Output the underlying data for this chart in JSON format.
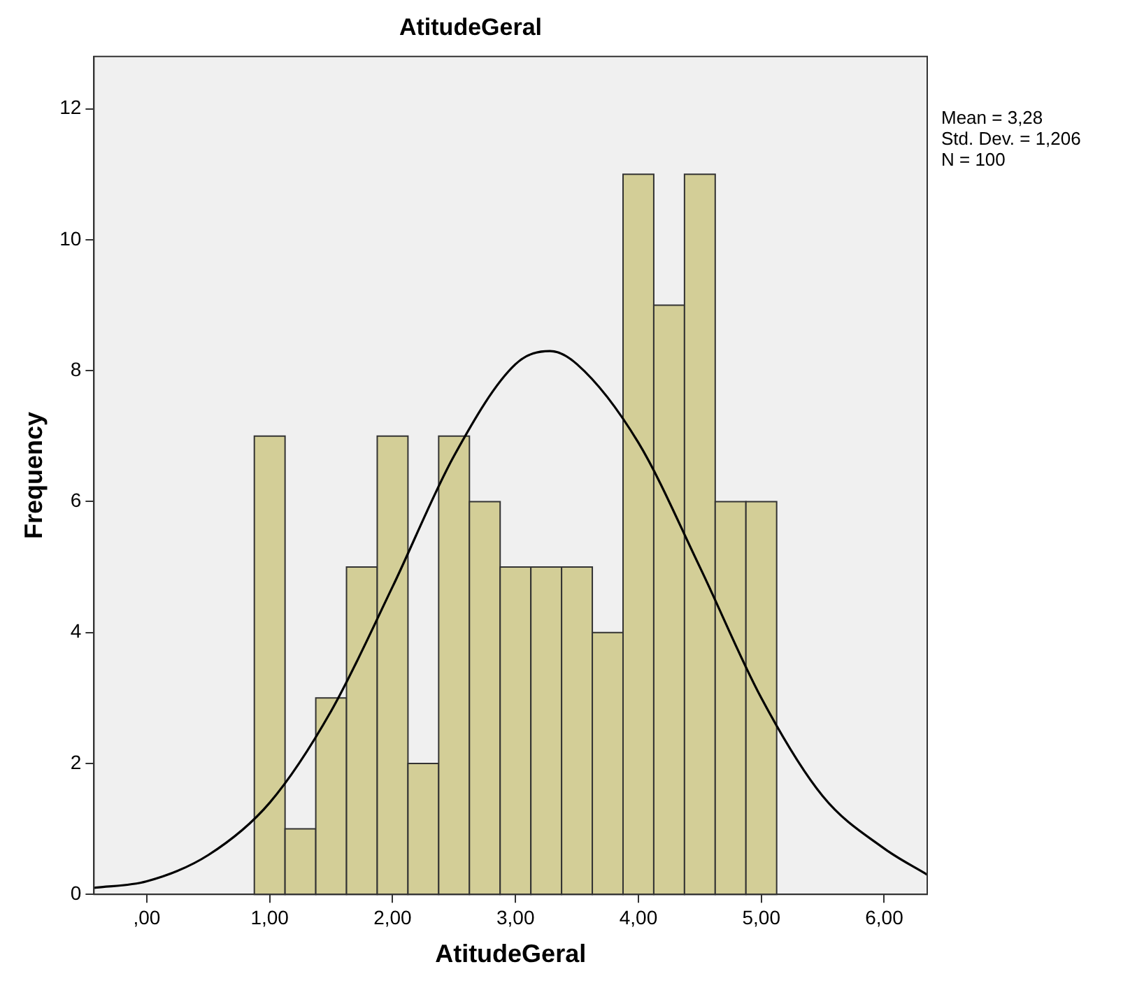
{
  "chart_data": {
    "type": "histogram",
    "title": "AtitudeGeral",
    "xlabel": "AtitudeGeral",
    "ylabel": "Frequency",
    "bins": [
      0.875,
      1.125,
      1.375,
      1.625,
      1.875,
      2.125,
      2.375,
      2.625,
      2.875,
      3.125,
      3.375,
      3.625,
      3.875,
      4.125,
      4.375,
      4.625,
      4.875,
      5.125
    ],
    "values": [
      7,
      1,
      3,
      5,
      7,
      2,
      7,
      6,
      5,
      5,
      5,
      4,
      11,
      9,
      11,
      6,
      6
    ],
    "color": "#d3ce97",
    "series": [
      {
        "type": "line",
        "color": "#000000",
        "x": [
          -0.43,
          0,
          0.5,
          1,
          1.5,
          2,
          2.5,
          3,
          3.28,
          3.5,
          4,
          4.5,
          5,
          5.5,
          6,
          6.35
        ],
        "values": [
          0.1,
          0.2,
          0.6,
          1.4,
          2.8,
          4.7,
          6.7,
          8.1,
          8.3,
          8.1,
          6.9,
          5,
          3,
          1.5,
          0.7,
          0.3
        ]
      }
    ],
    "xlim": [
      -0.43,
      6.35
    ],
    "xticks": [
      {
        "value": 0,
        "label": ",00"
      },
      {
        "value": 1,
        "label": "1,00"
      },
      {
        "value": 2,
        "label": "2,00"
      },
      {
        "value": 3,
        "label": "3,00"
      },
      {
        "value": 4,
        "label": "4,00"
      },
      {
        "value": 5,
        "label": "5,00"
      },
      {
        "value": 6,
        "label": "6,00"
      }
    ],
    "ylim": [
      0,
      12.8
    ],
    "yticks": [
      0,
      2,
      4,
      6,
      8,
      10,
      12
    ],
    "grid": false,
    "legend": false,
    "marker": "none",
    "annotations": [
      "Mean = 3,28",
      "Std. Dev. = 1,206",
      "N = 100"
    ]
  }
}
